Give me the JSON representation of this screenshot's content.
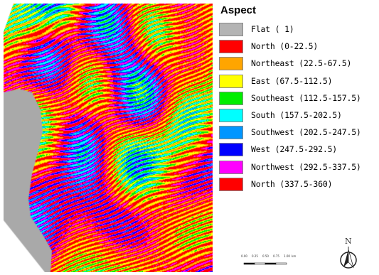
{
  "map": {
    "palette": [
      "#ff0000",
      "#ffa500",
      "#ffff00",
      "#00ee00",
      "#00ffff",
      "#0096ff",
      "#0000ff",
      "#ff00ff",
      "#ff0000"
    ],
    "flat_color": "#a9a9a9",
    "background": "#ffffff"
  },
  "legend": {
    "title": "Aspect",
    "items": [
      {
        "label": "Flat ( 1)",
        "color": "#b4b4b4"
      },
      {
        "label": "North (0-22.5)",
        "color": "#ff0000"
      },
      {
        "label": "Northeast (22.5-67.5)",
        "color": "#ffa500"
      },
      {
        "label": "East (67.5-112.5)",
        "color": "#ffff00"
      },
      {
        "label": "Southeast (112.5-157.5)",
        "color": "#00ee00"
      },
      {
        "label": "South (157.5-202.5)",
        "color": "#00ffff"
      },
      {
        "label": "Southwest (202.5-247.5)",
        "color": "#0096ff"
      },
      {
        "label": "West (247.5-292.5)",
        "color": "#0000ff"
      },
      {
        "label": "Northwest (292.5-337.5)",
        "color": "#ff00ff"
      },
      {
        "label": "North (337.5-360)",
        "color": "#ff0000"
      }
    ]
  },
  "scalebar": {
    "ticks": [
      "0.00",
      "0.25",
      "0.50",
      "0.75",
      "1.00"
    ],
    "unit": "km"
  },
  "north_arrow": {
    "label": "N"
  }
}
